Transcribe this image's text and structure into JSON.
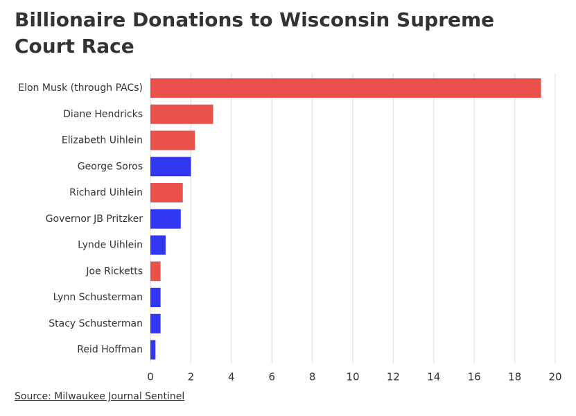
{
  "title": "Billionaire Donations to Wisconsin Supreme Court Race",
  "source": "Source: Milwaukee Journal Sentinel",
  "colors": {
    "republican": "#e8524a",
    "democrat": "#3136f0",
    "grid": "#e6e6e6",
    "text": "#333333"
  },
  "chart_data": {
    "type": "bar",
    "orientation": "horizontal",
    "title": "Billionaire Donations to Wisconsin Supreme Court Race",
    "xlabel": "",
    "ylabel": "",
    "xlim": [
      0,
      20
    ],
    "x_ticks": [
      0,
      2,
      4,
      6,
      8,
      10,
      12,
      14,
      16,
      18,
      20
    ],
    "grid": "vertical",
    "categories": [
      "Elon Musk (through PACs)",
      "Diane Hendricks",
      "Elizabeth Uihlein",
      "George Soros",
      "Richard Uihlein",
      "Governor JB Pritzker",
      "Lynde Uihlein",
      "Joe Ricketts",
      "Lynn Schusterman",
      "Stacy Schusterman",
      "Reid Hoffman"
    ],
    "values": [
      19.3,
      3.1,
      2.2,
      2.0,
      1.6,
      1.5,
      0.75,
      0.5,
      0.5,
      0.5,
      0.25
    ],
    "bar_colors": [
      "#e8524a",
      "#e8524a",
      "#e8524a",
      "#3136f0",
      "#e8524a",
      "#3136f0",
      "#3136f0",
      "#e8524a",
      "#3136f0",
      "#3136f0",
      "#3136f0"
    ]
  }
}
